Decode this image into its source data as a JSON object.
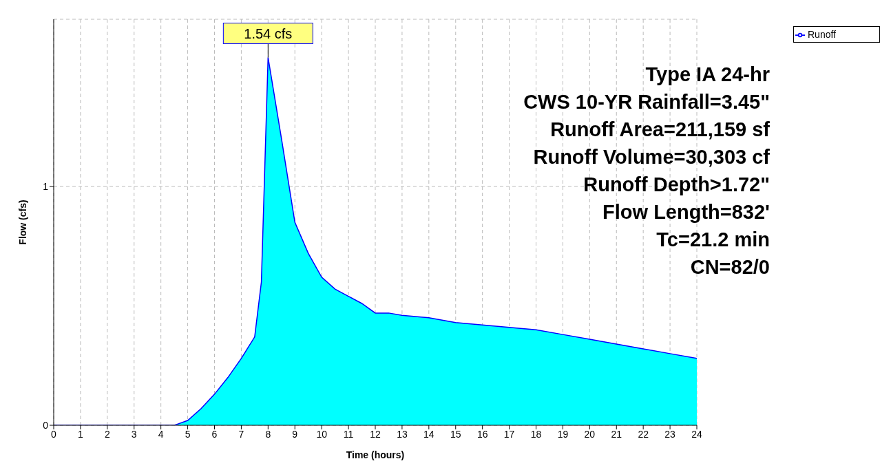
{
  "chart_data": {
    "type": "area",
    "xlabel": "Time  (hours)",
    "ylabel": "Flow  (cfs)",
    "x": [
      0,
      1,
      2,
      3,
      4,
      4.5,
      5,
      5.5,
      6,
      6.5,
      7,
      7.5,
      7.75,
      8,
      8.5,
      9,
      9.5,
      10,
      10.5,
      11,
      11.5,
      12,
      12.5,
      13,
      14,
      15,
      16,
      17,
      18,
      19,
      20,
      21,
      22,
      23,
      24
    ],
    "series": [
      {
        "name": "Runoff",
        "color": "#00ffff",
        "values": [
          0,
          0,
          0,
          0,
          0,
          0,
          0.02,
          0.07,
          0.13,
          0.2,
          0.28,
          0.37,
          0.6,
          1.54,
          1.2,
          0.85,
          0.72,
          0.62,
          0.57,
          0.54,
          0.51,
          0.47,
          0.47,
          0.46,
          0.45,
          0.43,
          0.42,
          0.41,
          0.4,
          0.38,
          0.36,
          0.34,
          0.32,
          0.3,
          0.28
        ]
      }
    ],
    "xlim": [
      0,
      24
    ],
    "xticks": [
      0,
      1,
      2,
      3,
      4,
      5,
      6,
      7,
      8,
      9,
      10,
      11,
      12,
      13,
      14,
      15,
      16,
      17,
      18,
      19,
      20,
      21,
      22,
      23,
      24
    ],
    "ylim": [
      0,
      1.7
    ],
    "yticks": [
      0,
      1
    ],
    "grid": true,
    "legend": "top right",
    "annotations": [
      {
        "text": "1.54 cfs",
        "x": 8,
        "y": 1.54
      },
      "Type IA 24-hr",
      "CWS 10-YR Rainfall=3.45\"",
      "Runoff Area=211,159 sf",
      "Runoff Volume=30,303 cf",
      "Runoff Depth>1.72\"",
      "Flow Length=832'",
      "Tc=21.2 min",
      "CN=82/0"
    ]
  }
}
